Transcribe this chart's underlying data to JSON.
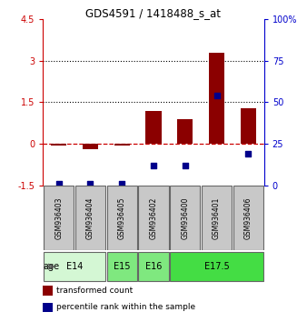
{
  "title": "GDS4591 / 1418488_s_at",
  "samples": [
    "GSM936403",
    "GSM936404",
    "GSM936405",
    "GSM936402",
    "GSM936400",
    "GSM936401",
    "GSM936406"
  ],
  "transformed_count": [
    -0.05,
    -0.2,
    -0.05,
    1.2,
    0.9,
    3.3,
    1.3
  ],
  "percentile_rank_scaled": [
    -1.45,
    -1.45,
    -1.45,
    -0.78,
    -0.78,
    1.75,
    -0.35
  ],
  "ylim": [
    -1.5,
    4.5
  ],
  "yticks_left": [
    -1.5,
    0.0,
    1.5,
    3.0,
    4.5
  ],
  "ytick_labels_left": [
    "-1.5",
    "0",
    "1.5",
    "3",
    "4.5"
  ],
  "right_ytick_positions": [
    -1.5,
    0.0,
    1.5,
    3.0,
    4.5
  ],
  "ytick_labels_right": [
    "0",
    "25",
    "50",
    "75",
    "100%"
  ],
  "dotted_lines": [
    1.5,
    3.0
  ],
  "dashed_line": 0.0,
  "bar_color": "#8B0000",
  "dot_color": "#00008B",
  "age_groups": [
    {
      "label": "E14",
      "span": [
        0,
        1
      ],
      "color": "#d4f7d4"
    },
    {
      "label": "E15",
      "span": [
        2,
        2
      ],
      "color": "#7fe87f"
    },
    {
      "label": "E16",
      "span": [
        3,
        3
      ],
      "color": "#7fe87f"
    },
    {
      "label": "E17.5",
      "span": [
        4,
        6
      ],
      "color": "#44dd44"
    }
  ],
  "legend_bar_label": "transformed count",
  "legend_dot_label": "percentile rank within the sample",
  "age_label": "age",
  "left_tick_color": "#cc0000",
  "right_tick_color": "#0000cc",
  "grid_color": "#000000",
  "dashed_color": "#cc0000",
  "sample_bg": "#c8c8c8",
  "sample_border": "#666666"
}
